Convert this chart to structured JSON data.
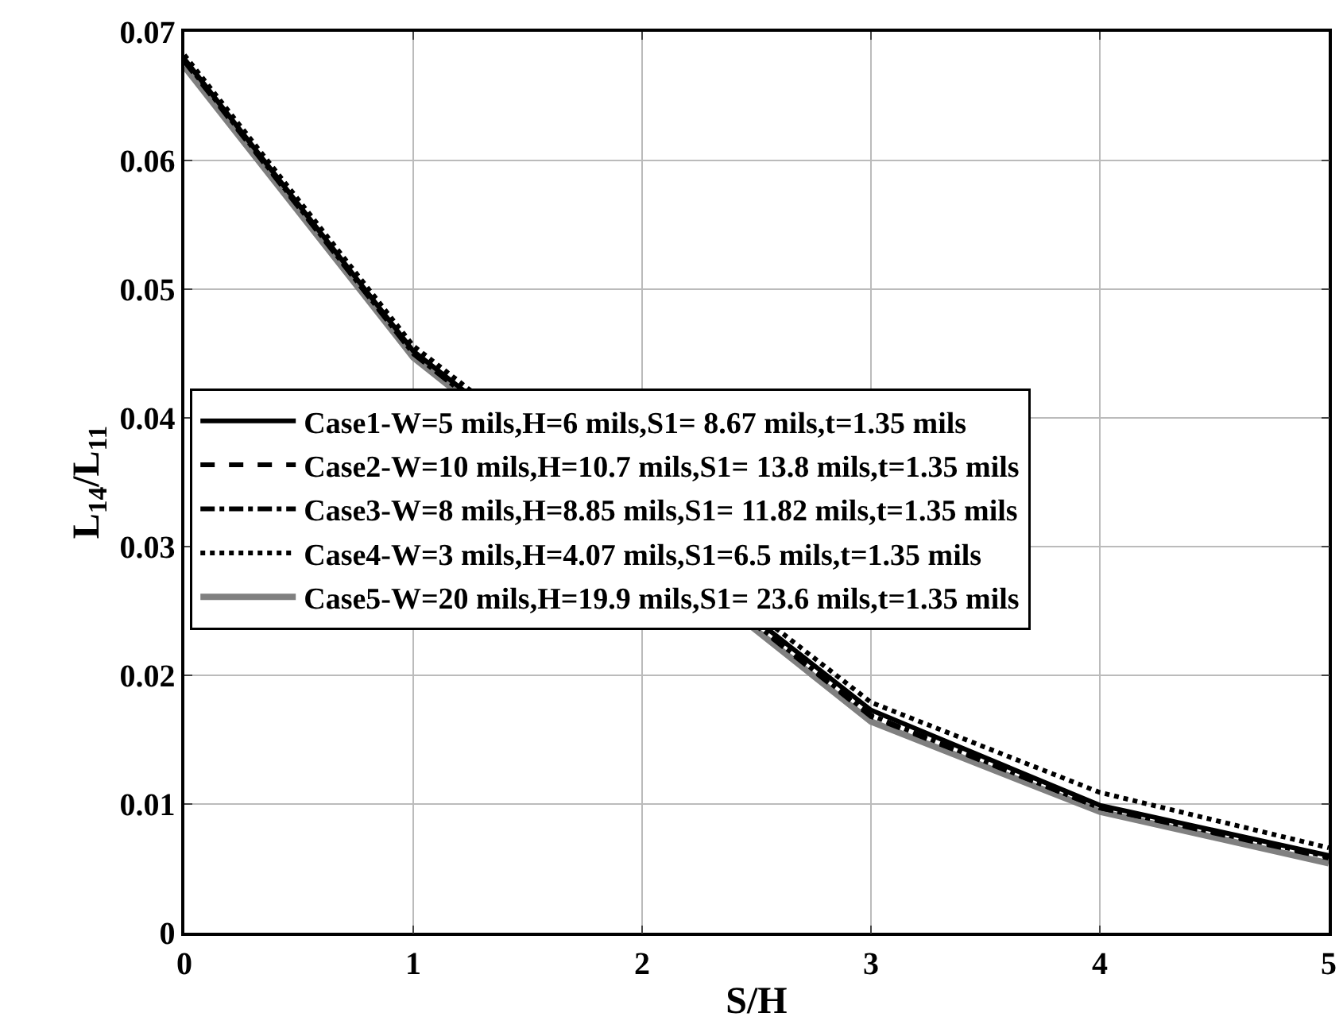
{
  "chart_data": {
    "type": "line",
    "xlabel": "S/H",
    "ylabel": "L$_{14}$/L$_{11}$",
    "x": [
      0,
      1,
      2,
      3,
      4,
      5
    ],
    "series": [
      {
        "name": "Case1-W=5 mils,H=6 mils,S1= 8.67 mils,t=1.35 mils",
        "color": "#000000",
        "line_style": "solid",
        "values": [
          0.0679,
          0.0452,
          null,
          0.0173,
          0.0099,
          0.006
        ]
      },
      {
        "name": "Case2-W=10 mils,H=10.7 mils,S1= 13.8 mils,t=1.35 mils",
        "color": "#000000",
        "line_style": "dashed",
        "values": [
          0.0677,
          0.045,
          null,
          0.0168,
          0.0097,
          0.0058
        ]
      },
      {
        "name": "Case3-W=8 mils,H=8.85 mils,S1= 11.82 mils,t=1.35 mils",
        "color": "#000000",
        "line_style": "dashdot",
        "values": [
          0.0678,
          0.045,
          null,
          0.0169,
          0.0097,
          0.0059
        ]
      },
      {
        "name": "Case4-W=3 mils,H=4.07 mils,S1=6.5 mils,t=1.35 mils",
        "color": "#000000",
        "line_style": "dotted",
        "values": [
          0.0682,
          0.0456,
          null,
          0.0179,
          0.0109,
          0.0066
        ]
      },
      {
        "name": "Case5-W=20 mils,H=19.9 mils,S1= 23.6 mils,t=1.35 mils",
        "color": "#808080",
        "line_style": "solid",
        "values": [
          0.0673,
          0.0447,
          null,
          0.0164,
          0.0094,
          0.0054
        ]
      }
    ],
    "xlim": [
      0,
      5
    ],
    "xticks": [
      0,
      1,
      2,
      3,
      4,
      5
    ],
    "ylim": [
      0,
      0.07
    ],
    "yticks": [
      0,
      0.01,
      0.02,
      0.03,
      0.04,
      0.05,
      0.06,
      0.07
    ],
    "grid": true,
    "legend": "left",
    "marker": "none"
  }
}
